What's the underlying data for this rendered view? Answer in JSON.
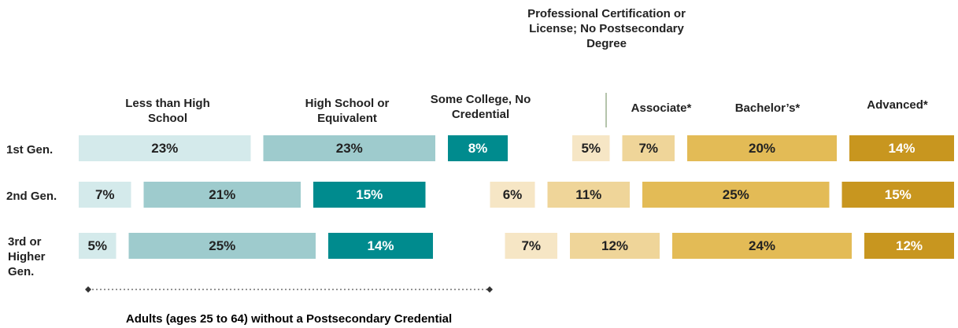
{
  "chart_data": {
    "type": "bar",
    "categories": [
      "1st Gen.",
      "2nd Gen.",
      "3rd or Higher Gen."
    ],
    "series": [
      {
        "name": "Less than High School",
        "color": "#d4eaeb",
        "values": [
          23,
          7,
          5
        ],
        "value_labels": [
          "23%",
          "7%",
          "5%"
        ]
      },
      {
        "name": "High School or Equivalent",
        "color": "#9ecbcd",
        "values": [
          23,
          21,
          25
        ],
        "value_labels": [
          "23%",
          "21%",
          "25%"
        ]
      },
      {
        "name": "Some College, No Credential",
        "color": "#008b8e",
        "values": [
          8,
          15,
          14
        ],
        "value_labels": [
          "8%",
          "15%",
          "14%"
        ]
      },
      {
        "name": "Professional Certification or License; No Postsecondary Degree",
        "color": "#f6e6c5",
        "values": [
          5,
          6,
          7
        ],
        "value_labels": [
          "5%",
          "6%",
          "7%"
        ]
      },
      {
        "name": "Associate*",
        "color": "#efd599",
        "values": [
          7,
          11,
          12
        ],
        "value_labels": [
          "7%",
          "11%",
          "12%"
        ]
      },
      {
        "name": "Bachelor’s*",
        "color": "#e3bb56",
        "values": [
          20,
          25,
          24
        ],
        "value_labels": [
          "20%",
          "25%",
          "24%"
        ]
      },
      {
        "name": "Advanced*",
        "color": "#c8961f",
        "values": [
          14,
          15,
          12
        ],
        "value_labels": [
          "14%",
          "15%",
          "12%"
        ]
      }
    ],
    "annotation": "Adults (ages 25 to 64) without a Postsecondary Credential"
  }
}
